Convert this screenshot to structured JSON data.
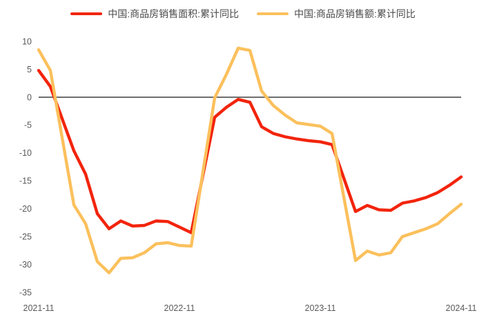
{
  "legend": {
    "items": [
      {
        "label": "中国:商品房销售面积:累计同比",
        "color": "#f2240c"
      },
      {
        "label": "中国:商品房销售额:累计同比",
        "color": "#fbc05c"
      }
    ]
  },
  "chart_data": {
    "type": "line",
    "x": [
      "2021-11",
      "2021-12",
      "2022-02",
      "2022-03",
      "2022-04",
      "2022-05",
      "2022-06",
      "2022-07",
      "2022-08",
      "2022-09",
      "2022-10",
      "2022-11",
      "2022-12",
      "2023-02",
      "2023-03",
      "2023-04",
      "2023-05",
      "2023-06",
      "2023-07",
      "2023-08",
      "2023-09",
      "2023-10",
      "2023-11",
      "2023-12",
      "2024-02",
      "2024-03",
      "2024-04",
      "2024-05",
      "2024-06",
      "2024-07",
      "2024-08",
      "2024-09",
      "2024-10",
      "2024-11"
    ],
    "series": [
      {
        "name": "中国:商品房销售面积:累计同比",
        "color": "#f2240c",
        "values": [
          4.8,
          1.9,
          -9.6,
          -13.8,
          -20.9,
          -23.6,
          -22.2,
          -23.1,
          -23.0,
          -22.2,
          -22.3,
          -23.3,
          -24.3,
          -3.6,
          -1.8,
          -0.4,
          -0.9,
          -5.3,
          -6.5,
          -7.1,
          -7.5,
          -7.8,
          -8.0,
          -8.5,
          -20.5,
          -19.4,
          -20.2,
          -20.3,
          -19.0,
          -18.6,
          -18.0,
          -17.1,
          -15.8,
          -14.3
        ]
      },
      {
        "name": "中国:商品房销售额:累计同比",
        "color": "#fbc05c",
        "values": [
          8.5,
          4.8,
          -19.3,
          -22.7,
          -29.5,
          -31.5,
          -28.9,
          -28.8,
          -27.9,
          -26.3,
          -26.1,
          -26.6,
          -26.7,
          -0.1,
          4.1,
          8.8,
          8.4,
          1.1,
          -1.5,
          -3.2,
          -4.6,
          -4.9,
          -5.2,
          -6.5,
          -29.3,
          -27.6,
          -28.3,
          -27.9,
          -25.0,
          -24.3,
          -23.6,
          -22.7,
          -20.9,
          -19.2
        ]
      }
    ],
    "title": "",
    "xlabel": "",
    "ylabel": "",
    "ylim": [
      -35,
      10
    ],
    "yticks": [
      10,
      5,
      0,
      -5,
      -10,
      -15,
      -20,
      -25,
      -30,
      -35
    ],
    "xticks": [
      "2021-11",
      "2022-11",
      "2023-11",
      "2024-11"
    ],
    "grid": false,
    "legend_position": "top",
    "zero_line": true,
    "zero_line_color": "#3f3f3f",
    "axis_text_color": "#595959"
  }
}
